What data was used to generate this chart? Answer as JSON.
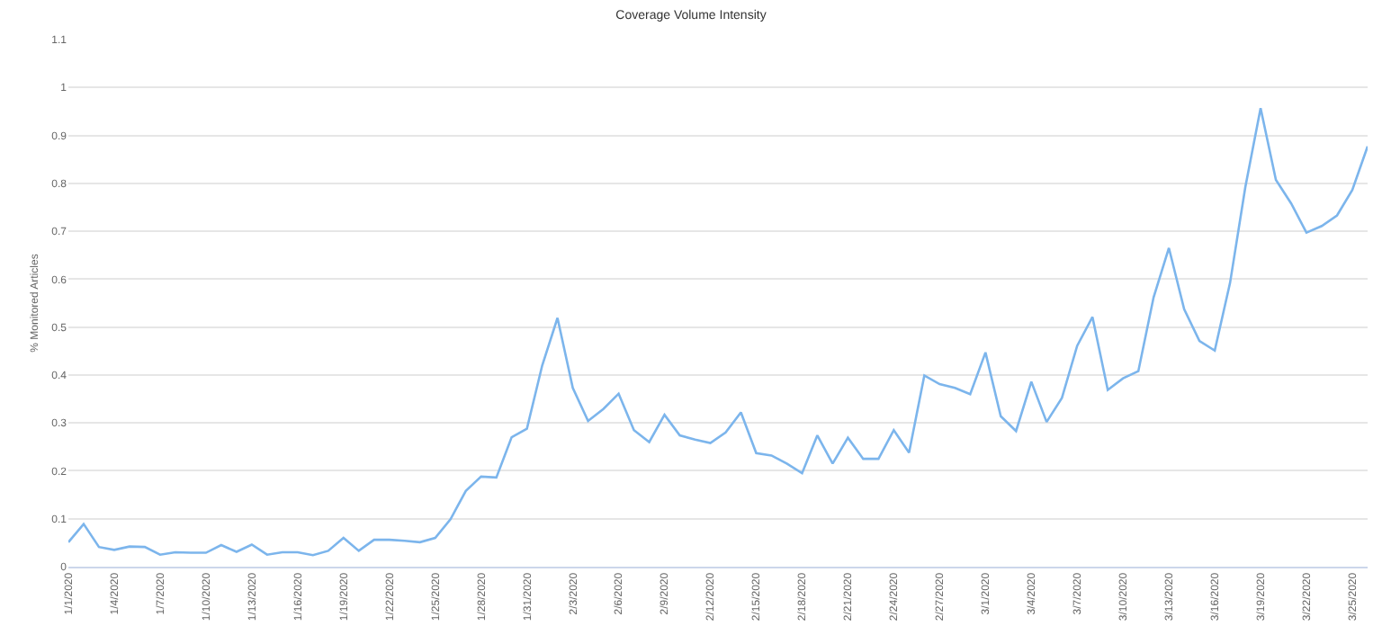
{
  "chart_data": {
    "type": "line",
    "title": "Coverage Volume Intensity",
    "ylabel": "% Monitored Articles",
    "x": [
      "2020-01-01",
      "2020-01-02",
      "2020-01-03",
      "2020-01-04",
      "2020-01-05",
      "2020-01-06",
      "2020-01-07",
      "2020-01-08",
      "2020-01-09",
      "2020-01-10",
      "2020-01-11",
      "2020-01-12",
      "2020-01-13",
      "2020-01-14",
      "2020-01-15",
      "2020-01-16",
      "2020-01-17",
      "2020-01-18",
      "2020-01-19",
      "2020-01-20",
      "2020-01-21",
      "2020-01-22",
      "2020-01-23",
      "2020-01-24",
      "2020-01-25",
      "2020-01-26",
      "2020-01-27",
      "2020-01-28",
      "2020-01-29",
      "2020-01-30",
      "2020-01-31",
      "2020-02-01",
      "2020-02-02",
      "2020-02-03",
      "2020-02-04",
      "2020-02-05",
      "2020-02-06",
      "2020-02-07",
      "2020-02-08",
      "2020-02-09",
      "2020-02-10",
      "2020-02-11",
      "2020-02-12",
      "2020-02-13",
      "2020-02-14",
      "2020-02-15",
      "2020-02-16",
      "2020-02-17",
      "2020-02-18",
      "2020-02-19",
      "2020-02-20",
      "2020-02-21",
      "2020-02-22",
      "2020-02-23",
      "2020-02-24",
      "2020-02-25",
      "2020-02-26",
      "2020-02-27",
      "2020-02-28",
      "2020-02-29",
      "2020-03-01",
      "2020-03-02",
      "2020-03-03",
      "2020-03-04",
      "2020-03-05",
      "2020-03-06",
      "2020-03-07",
      "2020-03-08",
      "2020-03-09",
      "2020-03-10",
      "2020-03-11",
      "2020-03-12",
      "2020-03-13",
      "2020-03-14",
      "2020-03-15",
      "2020-03-16",
      "2020-03-17",
      "2020-03-18",
      "2020-03-19",
      "2020-03-20",
      "2020-03-21",
      "2020-03-22",
      "2020-03-23",
      "2020-03-24",
      "2020-03-25",
      "2020-03-26"
    ],
    "series": [
      {
        "color": "#7cb5ec",
        "values": [
          0.051,
          0.089,
          0.041,
          0.035,
          0.042,
          0.041,
          0.025,
          0.03,
          0.029,
          0.029,
          0.045,
          0.031,
          0.046,
          0.025,
          0.03,
          0.03,
          0.024,
          0.033,
          0.06,
          0.033,
          0.056,
          0.056,
          0.054,
          0.051,
          0.06,
          0.099,
          0.158,
          0.188,
          0.186,
          0.27,
          0.288,
          0.42,
          0.519,
          0.373,
          0.304,
          0.329,
          0.361,
          0.285,
          0.26,
          0.317,
          0.274,
          0.265,
          0.258,
          0.28,
          0.322,
          0.237,
          0.232,
          0.215,
          0.195,
          0.274,
          0.215,
          0.269,
          0.225,
          0.225,
          0.285,
          0.238,
          0.399,
          0.381,
          0.373,
          0.36,
          0.447,
          0.314,
          0.283,
          0.386,
          0.302,
          0.352,
          0.461,
          0.521,
          0.369,
          0.393,
          0.408,
          0.562,
          0.665,
          0.537,
          0.471,
          0.451,
          0.592,
          0.792,
          0.957,
          0.807,
          0.758,
          0.697,
          0.711,
          0.733,
          0.786,
          0.877
        ]
      }
    ],
    "xlim": [
      "2020-01-01",
      "2020-03-26"
    ],
    "xticks": [
      {
        "value": "2020-01-01",
        "label": "1/1/2020"
      },
      {
        "value": "2020-01-04",
        "label": "1/4/2020"
      },
      {
        "value": "2020-01-07",
        "label": "1/7/2020"
      },
      {
        "value": "2020-01-10",
        "label": "1/10/2020"
      },
      {
        "value": "2020-01-13",
        "label": "1/13/2020"
      },
      {
        "value": "2020-01-16",
        "label": "1/16/2020"
      },
      {
        "value": "2020-01-19",
        "label": "1/19/2020"
      },
      {
        "value": "2020-01-22",
        "label": "1/22/2020"
      },
      {
        "value": "2020-01-25",
        "label": "1/25/2020"
      },
      {
        "value": "2020-01-28",
        "label": "1/28/2020"
      },
      {
        "value": "2020-01-31",
        "label": "1/31/2020"
      },
      {
        "value": "2020-02-03",
        "label": "2/3/2020"
      },
      {
        "value": "2020-02-06",
        "label": "2/6/2020"
      },
      {
        "value": "2020-02-09",
        "label": "2/9/2020"
      },
      {
        "value": "2020-02-12",
        "label": "2/12/2020"
      },
      {
        "value": "2020-02-15",
        "label": "2/15/2020"
      },
      {
        "value": "2020-02-18",
        "label": "2/18/2020"
      },
      {
        "value": "2020-02-21",
        "label": "2/21/2020"
      },
      {
        "value": "2020-02-24",
        "label": "2/24/2020"
      },
      {
        "value": "2020-02-27",
        "label": "2/27/2020"
      },
      {
        "value": "2020-03-01",
        "label": "3/1/2020"
      },
      {
        "value": "2020-03-04",
        "label": "3/4/2020"
      },
      {
        "value": "2020-03-07",
        "label": "3/7/2020"
      },
      {
        "value": "2020-03-10",
        "label": "3/10/2020"
      },
      {
        "value": "2020-03-13",
        "label": "3/13/2020"
      },
      {
        "value": "2020-03-16",
        "label": "3/16/2020"
      },
      {
        "value": "2020-03-19",
        "label": "3/19/2020"
      },
      {
        "value": "2020-03-22",
        "label": "3/22/2020"
      },
      {
        "value": "2020-03-25",
        "label": "3/25/2020"
      }
    ],
    "ylim": [
      0,
      1.1
    ],
    "yticks": [
      0,
      0.1,
      0.2,
      0.3,
      0.4,
      0.5,
      0.6,
      0.7,
      0.8,
      0.9,
      1,
      1.1
    ],
    "grid": "y",
    "marker": "none",
    "line_style": "solid"
  }
}
